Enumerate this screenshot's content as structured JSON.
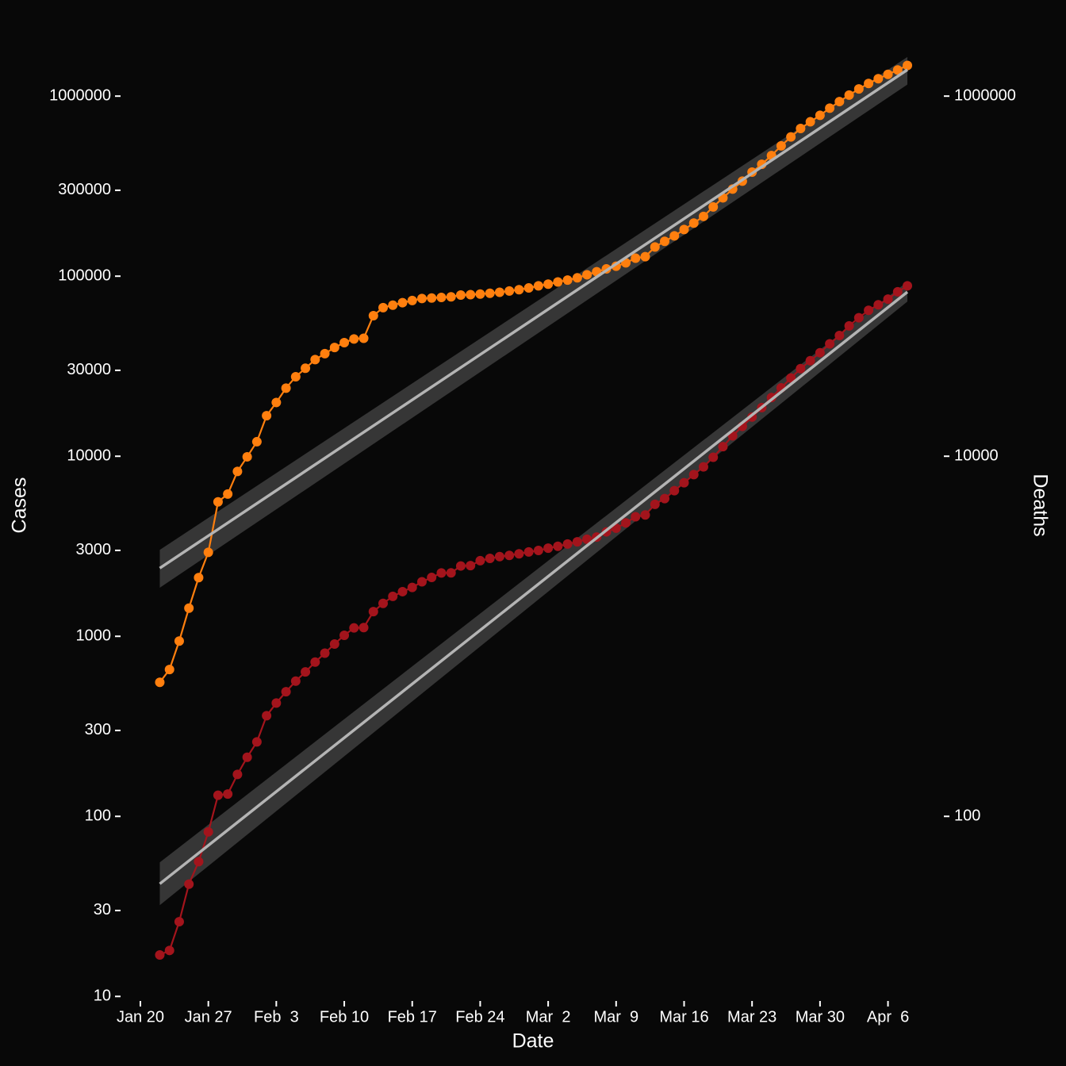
{
  "chart_data": {
    "type": "line",
    "x_label": "Date",
    "y_label": "Cases",
    "y2_label": "Deaths",
    "ylog": true,
    "xlim": [
      "Jan 18",
      "Apr 12"
    ],
    "xticks": [
      "Jan 20",
      "Jan 27",
      "Feb  3",
      "Feb 10",
      "Feb 17",
      "Feb 24",
      "Mar  2",
      "Mar  9",
      "Mar 16",
      "Mar 23",
      "Mar 30",
      "Apr  6"
    ],
    "ylim": [
      8.7,
      1860000
    ],
    "yticks": [
      10,
      30,
      100,
      300,
      1000,
      3000,
      10000,
      30000,
      100000,
      300000,
      1000000
    ],
    "y2lim": [
      8.7,
      1860000
    ],
    "y2ticks": [
      100,
      10000,
      1000000
    ],
    "x": [
      "Jan 22",
      "Jan 23",
      "Jan 24",
      "Jan 25",
      "Jan 26",
      "Jan 27",
      "Jan 28",
      "Jan 29",
      "Jan 30",
      "Jan 31",
      "Feb 1",
      "Feb 2",
      "Feb 3",
      "Feb 4",
      "Feb 5",
      "Feb 6",
      "Feb 7",
      "Feb 8",
      "Feb 9",
      "Feb 10",
      "Feb 11",
      "Feb 12",
      "Feb 13",
      "Feb 14",
      "Feb 15",
      "Feb 16",
      "Feb 17",
      "Feb 18",
      "Feb 19",
      "Feb 20",
      "Feb 21",
      "Feb 22",
      "Feb 23",
      "Feb 24",
      "Feb 25",
      "Feb 26",
      "Feb 27",
      "Feb 28",
      "Feb 29",
      "Mar 1",
      "Mar 2",
      "Mar 3",
      "Mar 4",
      "Mar 5",
      "Mar 6",
      "Mar 7",
      "Mar 8",
      "Mar 9",
      "Mar 10",
      "Mar 11",
      "Mar 12",
      "Mar 13",
      "Mar 14",
      "Mar 15",
      "Mar 16",
      "Mar 17",
      "Mar 18",
      "Mar 19",
      "Mar 20",
      "Mar 21",
      "Mar 22",
      "Mar 23",
      "Mar 24",
      "Mar 25",
      "Mar 26",
      "Mar 27",
      "Mar 28",
      "Mar 29",
      "Mar 30",
      "Mar 31",
      "Apr 1",
      "Apr 2",
      "Apr 3",
      "Apr 4",
      "Apr 5",
      "Apr 6",
      "Apr 7",
      "Apr 8"
    ],
    "fit_color": "#b4b4b4",
    "band_color": "#3e3e3e",
    "series": [
      {
        "color": "#ff7f0e",
        "axis": "y",
        "values": [
          555,
          654,
          941,
          1434,
          2118,
          2927,
          5578,
          6166,
          8234,
          9927,
          12038,
          16787,
          19887,
          23898,
          27643,
          30802,
          34395,
          37129,
          40159,
          42762,
          44802,
          45221,
          60368,
          66885,
          69030,
          71224,
          73258,
          75136,
          75639,
          76197,
          76819,
          78572,
          78958,
          79561,
          80406,
          81388,
          82746,
          84112,
          86011,
          88369,
          90306,
          92840,
          95120,
          97886,
          101801,
          105847,
          109821,
          113590,
          118620,
          125875,
          128352,
          145205,
          156101,
          167454,
          181574,
          197102,
          214821,
          242570,
          272208,
          304507,
          336953,
          378235,
          418045,
          467653,
          529591,
          593291,
          660706,
          720117,
          782365,
          857487,
          932605,
          1013466,
          1095917,
          1176060,
          1249754,
          1321481,
          1396476,
          1480202
        ],
        "fit": {
          "x": [
            "Jan 22",
            "Apr 8"
          ],
          "values": [
            2390,
            1400000
          ],
          "lower": [
            1860,
            1160000
          ],
          "upper": [
            3020,
            1650000
          ]
        }
      },
      {
        "color": "#a3141c",
        "axis": "y2",
        "values": [
          17,
          18,
          26,
          42,
          56,
          82,
          131,
          133,
          171,
          213,
          259,
          362,
          426,
          492,
          564,
          634,
          719,
          806,
          906,
          1013,
          1113,
          1118,
          1371,
          1523,
          1666,
          1770,
          1868,
          2007,
          2122,
          2247,
          2251,
          2458,
          2469,
          2629,
          2708,
          2770,
          2814,
          2872,
          2941,
          2996,
          3085,
          3160,
          3254,
          3348,
          3460,
          3558,
          3802,
          3988,
          4262,
          4615,
          4720,
          5404,
          5819,
          6440,
          7126,
          7905,
          8733,
          9867,
          11299,
          12973,
          14651,
          16505,
          18625,
          21181,
          23970,
          27198,
          30652,
          33925,
          37582,
          42107,
          46809,
          52983,
          58787,
          64606,
          69374,
          74565,
          81865,
          88338
        ],
        "fit": {
          "x": [
            "Jan 22",
            "Apr 8"
          ],
          "values": [
            42.2,
            81700
          ],
          "lower": [
            32.1,
            72300
          ],
          "upper": [
            55.5,
            93100
          ]
        }
      }
    ]
  }
}
